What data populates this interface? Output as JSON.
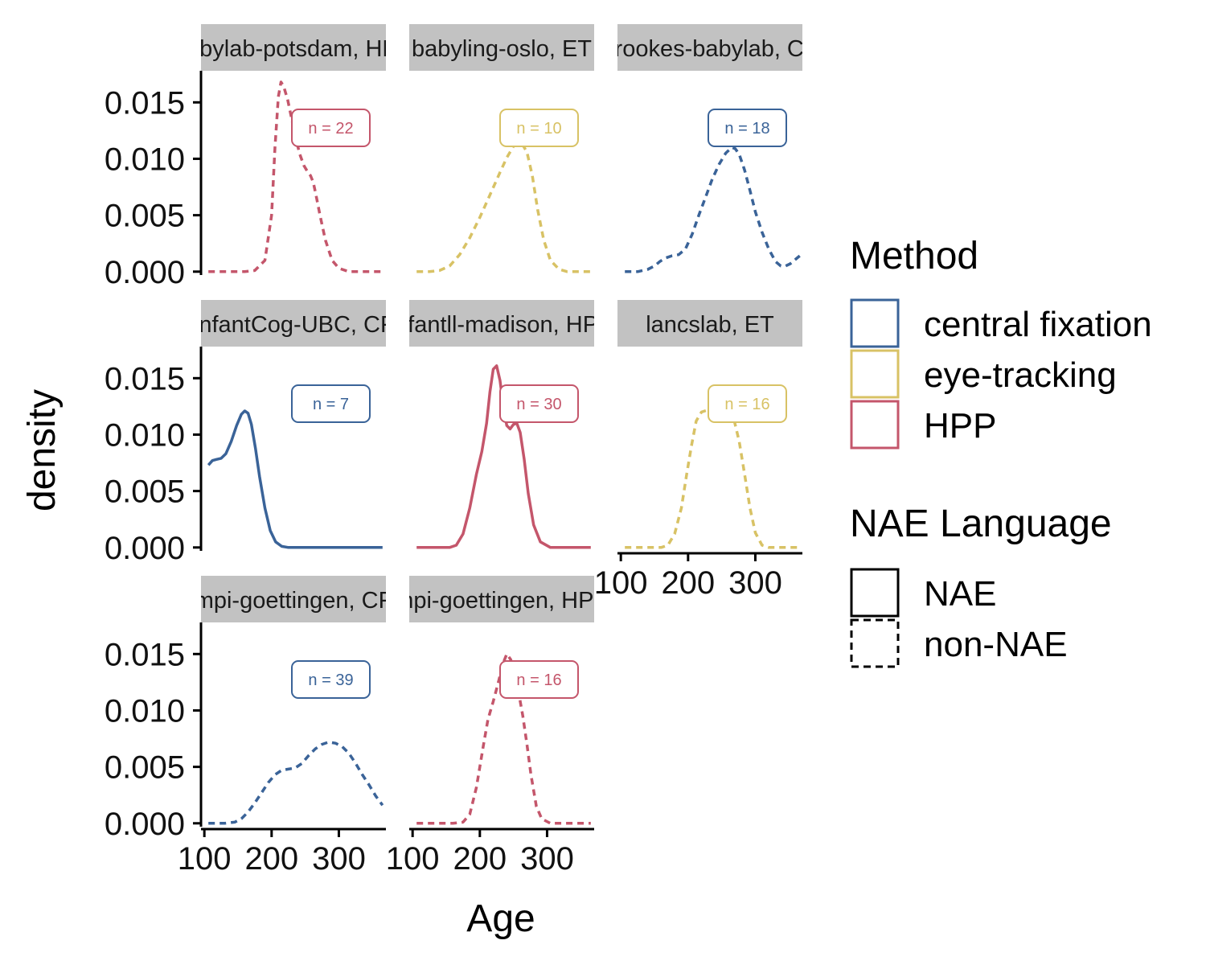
{
  "chart_data": {
    "type": "line",
    "chart_kind": "faceted density",
    "xlabel": "Age",
    "ylabel": "density",
    "xlim": [
      95,
      370
    ],
    "ylim": [
      -0.0003,
      0.0178
    ],
    "x_ticks": [
      100,
      200,
      300
    ],
    "x_tick_labels": [
      "100",
      "200",
      "300"
    ],
    "y_ticks": [
      0,
      0.005,
      0.01,
      0.015
    ],
    "y_tick_labels": [
      "0.000",
      "0.005",
      "0.010",
      "0.015"
    ],
    "grid": false,
    "legend_position": "right",
    "colors": {
      "central fixation": "#3a6398",
      "eye-tracking": "#d8c265",
      "HPP": "#c4566b"
    },
    "legend": {
      "method_title": "Method",
      "method_items": [
        {
          "label": "central fixation",
          "color": "#3a6398"
        },
        {
          "label": "eye-tracking",
          "color": "#d8c265"
        },
        {
          "label": "HPP",
          "color": "#c4566b"
        }
      ],
      "language_title": "NAE Language",
      "language_items": [
        {
          "label": "NAE",
          "dash": "solid"
        },
        {
          "label": "non-NAE",
          "dash": "dashed"
        }
      ]
    },
    "panels": [
      {
        "strip": "babylab-potsdam, HPP",
        "method": "HPP",
        "language": "non-NAE",
        "n_label": "n = 22",
        "x": [
          106,
          130,
          160,
          175,
          190,
          200,
          205,
          210,
          214,
          218,
          224,
          230,
          236,
          242,
          248,
          254,
          258,
          262,
          266,
          272,
          280,
          290,
          300,
          315,
          335,
          355,
          365
        ],
        "y": [
          0,
          0,
          0,
          0.0001,
          0.001,
          0.005,
          0.011,
          0.0155,
          0.0168,
          0.0164,
          0.0152,
          0.0135,
          0.0118,
          0.0104,
          0.0094,
          0.0088,
          0.0085,
          0.0079,
          0.0068,
          0.005,
          0.0028,
          0.001,
          0.0003,
          0,
          0,
          0,
          0
        ]
      },
      {
        "strip": "babyling-oslo, ET",
        "method": "eye-tracking",
        "language": "non-NAE",
        "n_label": "n = 10",
        "x": [
          106,
          125,
          140,
          155,
          170,
          185,
          200,
          215,
          230,
          240,
          250,
          258,
          263,
          270,
          278,
          286,
          295,
          305,
          318,
          330,
          345,
          365
        ],
        "y": [
          0,
          0,
          0.0001,
          0.0005,
          0.0015,
          0.003,
          0.0048,
          0.0068,
          0.0088,
          0.0101,
          0.0111,
          0.0114,
          0.0113,
          0.0106,
          0.0085,
          0.0055,
          0.0028,
          0.001,
          0.0002,
          0,
          0,
          0
        ]
      },
      {
        "strip": "brookes-babylab, CF",
        "method": "central fixation",
        "language": "non-NAE",
        "n_label": "n = 18",
        "x": [
          106,
          125,
          140,
          150,
          158,
          166,
          176,
          186,
          196,
          206,
          216,
          226,
          236,
          246,
          256,
          265,
          270,
          276,
          284,
          292,
          300,
          310,
          320,
          330,
          338,
          345,
          352,
          360,
          366
        ],
        "y": [
          0,
          0,
          0.0002,
          0.0005,
          0.0009,
          0.0012,
          0.0014,
          0.0015,
          0.002,
          0.0033,
          0.005,
          0.0066,
          0.0082,
          0.0095,
          0.0105,
          0.011,
          0.0109,
          0.0104,
          0.009,
          0.0072,
          0.0053,
          0.0035,
          0.002,
          0.0009,
          0.0005,
          0.0005,
          0.0007,
          0.0011,
          0.0014
        ]
      },
      {
        "strip": "InfantCog-UBC, CF",
        "method": "central fixation",
        "language": "NAE",
        "n_label": "n = 7",
        "x": [
          106,
          112,
          118,
          125,
          132,
          140,
          148,
          155,
          160,
          165,
          170,
          176,
          182,
          190,
          198,
          206,
          215,
          225,
          240,
          260,
          290,
          330,
          365
        ],
        "y": [
          0.0073,
          0.0077,
          0.0078,
          0.0079,
          0.0083,
          0.0094,
          0.0108,
          0.0118,
          0.0121,
          0.0119,
          0.0109,
          0.0088,
          0.0063,
          0.0035,
          0.0015,
          0.0005,
          0.0001,
          0,
          0,
          0,
          0,
          0,
          0
        ]
      },
      {
        "strip": "infantll-madison, HPP",
        "method": "HPP",
        "language": "NAE",
        "n_label": "n = 30",
        "x": [
          106,
          130,
          155,
          165,
          175,
          185,
          195,
          203,
          210,
          215,
          220,
          225,
          230,
          235,
          240,
          245,
          250,
          255,
          260,
          266,
          272,
          280,
          290,
          305,
          330,
          365
        ],
        "y": [
          0,
          0,
          0,
          0.0002,
          0.0012,
          0.0035,
          0.0065,
          0.0085,
          0.011,
          0.0138,
          0.0158,
          0.0161,
          0.0148,
          0.0125,
          0.0108,
          0.0105,
          0.0109,
          0.011,
          0.0102,
          0.0078,
          0.0048,
          0.002,
          0.0005,
          0,
          0,
          0
        ]
      },
      {
        "strip": "lancslab, ET",
        "method": "eye-tracking",
        "language": "non-NAE",
        "n_label": "n = 16",
        "x": [
          106,
          140,
          160,
          170,
          180,
          190,
          198,
          205,
          212,
          220,
          230,
          240,
          250,
          260,
          268,
          276,
          284,
          292,
          300,
          310,
          320,
          340,
          365
        ],
        "y": [
          0,
          0,
          0,
          0.0002,
          0.0012,
          0.0035,
          0.0065,
          0.009,
          0.0112,
          0.012,
          0.0122,
          0.0125,
          0.0127,
          0.0124,
          0.0114,
          0.0094,
          0.0065,
          0.0035,
          0.0013,
          0.0002,
          0,
          0,
          0
        ]
      },
      {
        "strip": "mpi-goettingen, CF",
        "method": "central fixation",
        "language": "non-NAE",
        "n_label": "n = 39",
        "x": [
          106,
          130,
          145,
          155,
          165,
          175,
          185,
          195,
          205,
          215,
          225,
          235,
          245,
          255,
          265,
          275,
          285,
          295,
          305,
          315,
          325,
          335,
          345,
          355,
          365
        ],
        "y": [
          0,
          0,
          0.0001,
          0.0004,
          0.001,
          0.0018,
          0.0027,
          0.0036,
          0.0043,
          0.0047,
          0.0048,
          0.0049,
          0.0053,
          0.006,
          0.0066,
          0.007,
          0.0072,
          0.0071,
          0.0068,
          0.0062,
          0.0053,
          0.0043,
          0.0034,
          0.0024,
          0.0016
        ]
      },
      {
        "strip": "mpi-goettingen, HPP",
        "method": "HPP",
        "language": "non-NAE",
        "n_label": "n = 16",
        "x": [
          106,
          130,
          160,
          175,
          185,
          195,
          205,
          212,
          220,
          228,
          234,
          240,
          246,
          252,
          258,
          264,
          270,
          276,
          284,
          292,
          305,
          330,
          365
        ],
        "y": [
          0,
          0,
          0,
          0.0001,
          0.0008,
          0.0032,
          0.0068,
          0.0092,
          0.0108,
          0.0126,
          0.0141,
          0.015,
          0.0145,
          0.0132,
          0.0115,
          0.0095,
          0.007,
          0.0043,
          0.0015,
          0.0004,
          0,
          0,
          0
        ]
      }
    ]
  }
}
